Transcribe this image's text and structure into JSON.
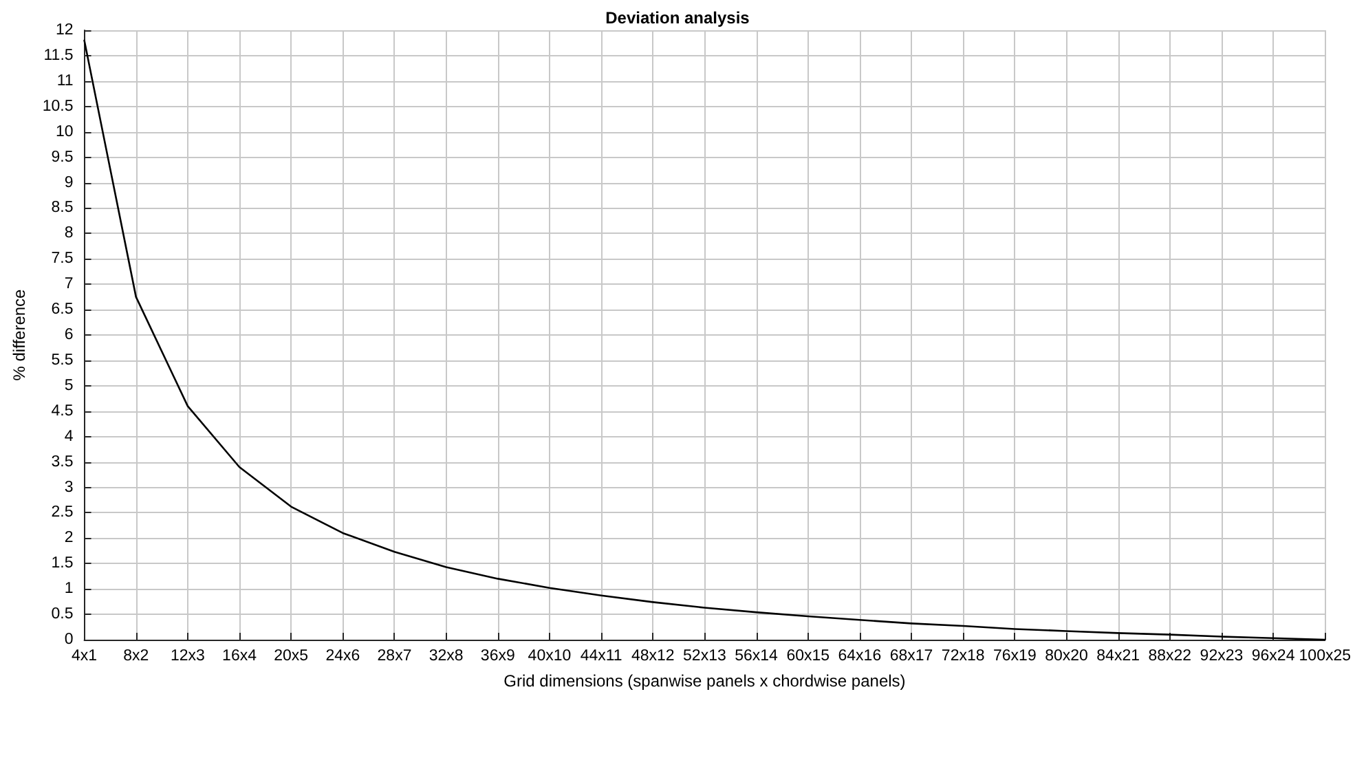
{
  "chart_data": {
    "type": "line",
    "title": "Deviation analysis",
    "xlabel": "Grid dimensions (spanwise panels x chordwise panels)",
    "ylabel": "% difference",
    "categories": [
      "4x1",
      "8x2",
      "12x3",
      "16x4",
      "20x5",
      "24x6",
      "28x7",
      "32x8",
      "36x9",
      "40x10",
      "44x11",
      "48x12",
      "52x13",
      "56x14",
      "60x15",
      "64x16",
      "68x17",
      "72x18",
      "76x19",
      "80x20",
      "84x21",
      "88x22",
      "92x23",
      "96x24",
      "100x25"
    ],
    "series": [
      {
        "color": "#000000",
        "values": [
          11.8,
          6.75,
          4.6,
          3.4,
          2.62,
          2.1,
          1.73,
          1.43,
          1.2,
          1.02,
          0.87,
          0.74,
          0.63,
          0.54,
          0.46,
          0.39,
          0.32,
          0.27,
          0.21,
          0.17,
          0.13,
          0.1,
          0.06,
          0.03,
          0
        ]
      }
    ],
    "ylim": [
      0,
      12
    ],
    "yticks": [
      0,
      0.5,
      1,
      1.5,
      2,
      2.5,
      3,
      3.5,
      4,
      4.5,
      5,
      5.5,
      6,
      6.5,
      7,
      7.5,
      8,
      8.5,
      9,
      9.5,
      10,
      10.5,
      11,
      11.5,
      12
    ],
    "grid": true,
    "marker": "none",
    "line_style": "solid"
  }
}
